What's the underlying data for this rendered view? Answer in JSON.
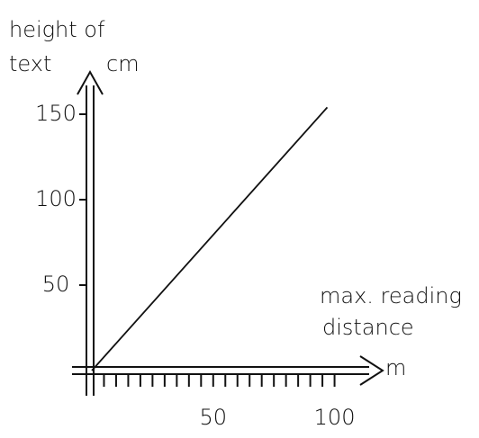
{
  "chart_data": {
    "type": "line",
    "ylabel": [
      "height of",
      "text"
    ],
    "yunit": "cm",
    "xlabel": [
      "max. reading",
      "distance"
    ],
    "xunit": "m",
    "x": [
      0,
      97
    ],
    "series": [
      {
        "color": "#111111",
        "values": [
          0,
          154
        ]
      }
    ],
    "xlim": [
      0,
      115
    ],
    "ylim": [
      0,
      160
    ],
    "xticks": [
      50,
      100
    ],
    "yticks": [
      50,
      100,
      150
    ],
    "xminorticks": [
      5,
      10,
      15,
      20,
      25,
      30,
      35,
      40,
      45,
      50,
      55,
      60,
      65,
      70,
      75,
      80,
      85,
      90,
      95,
      100
    ]
  }
}
